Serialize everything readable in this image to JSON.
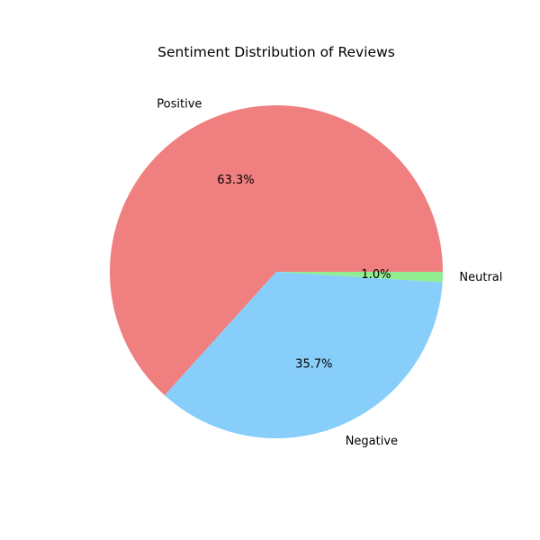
{
  "chart_data": {
    "type": "pie",
    "title": "Sentiment Distribution of Reviews",
    "labels": [
      "Positive",
      "Negative",
      "Neutral"
    ],
    "values": [
      63.3,
      35.7,
      1.0
    ],
    "autopct": [
      "63.3%",
      "35.7%",
      "1.0%"
    ],
    "colors": [
      "#f08080",
      "#87cefa",
      "#90ee90"
    ],
    "start_angle_deg": 0,
    "direction": "counterclockwise",
    "legend": "none",
    "grid": false
  }
}
